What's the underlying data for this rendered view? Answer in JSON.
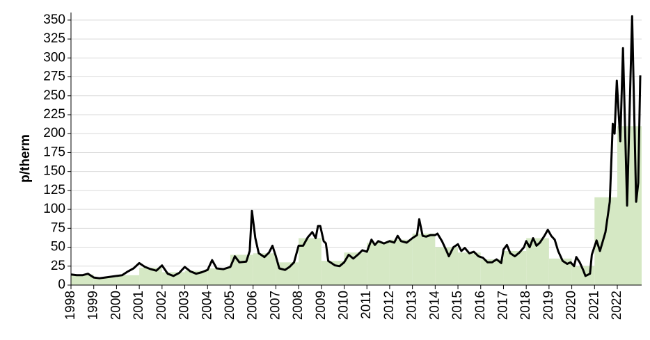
{
  "chart_data": {
    "type": "line",
    "y_label": "p/therm",
    "xlim": [
      1998,
      2023.07
    ],
    "ylim": [
      0,
      360
    ],
    "xticks": [
      1998,
      1999,
      2000,
      2001,
      2002,
      2003,
      2004,
      2005,
      2006,
      2007,
      2008,
      2009,
      2010,
      2011,
      2012,
      2013,
      2014,
      2015,
      2016,
      2017,
      2018,
      2019,
      2020,
      2021,
      2022
    ],
    "yticks": [
      0,
      25,
      50,
      75,
      100,
      125,
      150,
      175,
      200,
      225,
      250,
      275,
      300,
      325,
      350
    ],
    "grid": true,
    "series": [
      {
        "type": "step-area",
        "color": "#d5e8c4",
        "x": [
          1998,
          1999,
          2000,
          2001,
          2002,
          2003,
          2004,
          2005,
          2006,
          2007,
          2008,
          2009,
          2010,
          2011,
          2012,
          2013,
          2014,
          2015,
          2016,
          2017,
          2018,
          2019,
          2020,
          2021,
          2022
        ],
        "values": [
          14,
          10,
          13,
          23,
          17,
          19,
          22,
          40,
          42,
          30,
          62,
          32,
          43,
          56,
          60,
          68,
          50,
          43,
          34,
          45,
          62,
          35,
          25,
          116,
          210
        ]
      },
      {
        "type": "line",
        "color": "#000000",
        "x": [
          1998.0,
          1998.25,
          1998.5,
          1998.75,
          1999.0,
          1999.25,
          1999.5,
          1999.75,
          2000.0,
          2000.25,
          2000.5,
          2000.75,
          2001.0,
          2001.25,
          2001.5,
          2001.75,
          2002.0,
          2002.25,
          2002.5,
          2002.75,
          2003.0,
          2003.25,
          2003.5,
          2003.75,
          2004.0,
          2004.2,
          2004.4,
          2004.7,
          2005.0,
          2005.2,
          2005.4,
          2005.7,
          2005.85,
          2005.95,
          2006.1,
          2006.25,
          2006.5,
          2006.7,
          2006.85,
          2007.0,
          2007.15,
          2007.4,
          2007.6,
          2007.8,
          2008.0,
          2008.2,
          2008.4,
          2008.6,
          2008.75,
          2008.85,
          2008.95,
          2009.1,
          2009.2,
          2009.3,
          2009.6,
          2009.8,
          2010.0,
          2010.2,
          2010.4,
          2010.6,
          2010.8,
          2011.0,
          2011.2,
          2011.35,
          2011.5,
          2011.75,
          2012.0,
          2012.2,
          2012.35,
          2012.5,
          2012.75,
          2013.0,
          2013.2,
          2013.3,
          2013.45,
          2013.6,
          2013.8,
          2014.0,
          2014.1,
          2014.3,
          2014.5,
          2014.6,
          2014.8,
          2015.0,
          2015.15,
          2015.3,
          2015.5,
          2015.7,
          2015.9,
          2016.1,
          2016.3,
          2016.5,
          2016.7,
          2016.9,
          2017.0,
          2017.15,
          2017.3,
          2017.5,
          2017.7,
          2017.9,
          2018.0,
          2018.15,
          2018.3,
          2018.45,
          2018.6,
          2018.8,
          2018.95,
          2019.1,
          2019.25,
          2019.4,
          2019.6,
          2019.8,
          2019.95,
          2020.1,
          2020.2,
          2020.35,
          2020.5,
          2020.6,
          2020.8,
          2020.88,
          2021.09,
          2021.24,
          2021.48,
          2021.67,
          2021.8,
          2021.88,
          2021.98,
          2022.13,
          2022.25,
          2022.43,
          2022.65,
          2022.83,
          2022.92,
          2023.01
        ],
        "values": [
          14,
          13,
          13,
          15,
          10,
          9,
          10,
          11,
          12,
          13,
          18,
          22,
          29,
          24,
          21,
          19,
          26,
          15,
          12,
          16,
          24,
          18,
          15,
          17,
          20,
          33,
          22,
          21,
          24,
          38,
          30,
          31,
          45,
          98,
          62,
          42,
          37,
          43,
          52,
          38,
          22,
          20,
          24,
          30,
          52,
          52,
          63,
          70,
          62,
          78,
          78,
          58,
          55,
          32,
          26,
          25,
          30,
          40,
          35,
          40,
          46,
          44,
          60,
          53,
          58,
          55,
          58,
          56,
          65,
          58,
          56,
          62,
          66,
          87,
          65,
          64,
          66,
          66,
          68,
          58,
          45,
          38,
          50,
          54,
          45,
          49,
          42,
          44,
          38,
          36,
          30,
          30,
          34,
          29,
          47,
          53,
          42,
          38,
          43,
          50,
          58,
          50,
          62,
          52,
          56,
          65,
          73,
          65,
          60,
          45,
          32,
          28,
          30,
          25,
          37,
          30,
          20,
          12,
          15,
          40,
          59,
          45,
          70,
          110,
          213,
          200,
          270,
          190,
          313,
          105,
          355,
          110,
          135,
          277
        ]
      }
    ]
  }
}
